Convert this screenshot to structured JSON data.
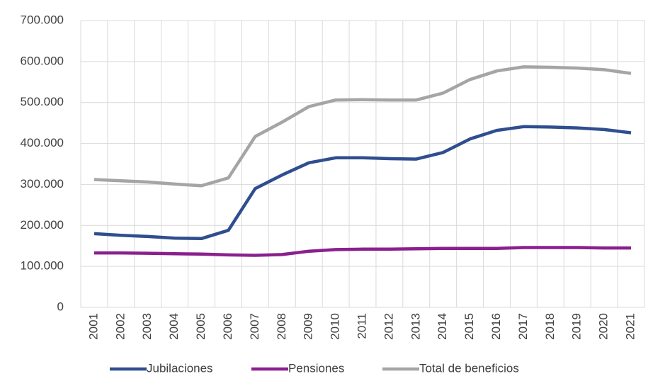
{
  "chart_data": {
    "type": "line",
    "categories": [
      "2001",
      "2002",
      "2003",
      "2004",
      "2005",
      "2006",
      "2007",
      "2008",
      "2009",
      "2010",
      "2011",
      "2012",
      "2013",
      "2014",
      "2015",
      "2016",
      "2017",
      "2018",
      "2019",
      "2020",
      "2021"
    ],
    "series": [
      {
        "name": "Jubilaciones",
        "color": "#2f4e8f",
        "values": [
          180000,
          176000,
          173000,
          169000,
          168000,
          188000,
          290000,
          323000,
          353000,
          365000,
          365000,
          363000,
          362000,
          378000,
          411000,
          432000,
          441000,
          440000,
          438000,
          434000,
          426000
        ]
      },
      {
        "name": "Pensiones",
        "color": "#8b1f8e",
        "values": [
          133000,
          133000,
          132000,
          131000,
          130000,
          128000,
          127000,
          129000,
          137000,
          141000,
          142000,
          142000,
          143000,
          144000,
          144000,
          144000,
          146000,
          146000,
          146000,
          145000,
          145000
        ]
      },
      {
        "name": "Total de beneficios",
        "color": "#a5a5a5",
        "values": [
          312000,
          309000,
          306000,
          301000,
          297000,
          316000,
          417000,
          452000,
          490000,
          506000,
          507000,
          506000,
          506000,
          523000,
          556000,
          577000,
          587000,
          586000,
          584000,
          580000,
          571000
        ]
      }
    ],
    "ylim": [
      0,
      700000
    ],
    "yticks": [
      0,
      {
        "value": 100000,
        "label": "100.000"
      },
      {
        "value": 200000,
        "label": "200.000"
      },
      {
        "value": 300000,
        "label": "300.000"
      },
      {
        "value": 400000,
        "label": "400.000"
      },
      {
        "value": 500000,
        "label": "500.000"
      },
      {
        "value": 600000,
        "label": "600.000"
      },
      {
        "value": 700000,
        "label": "700.000"
      }
    ],
    "grid": true,
    "legend": "bottom"
  }
}
